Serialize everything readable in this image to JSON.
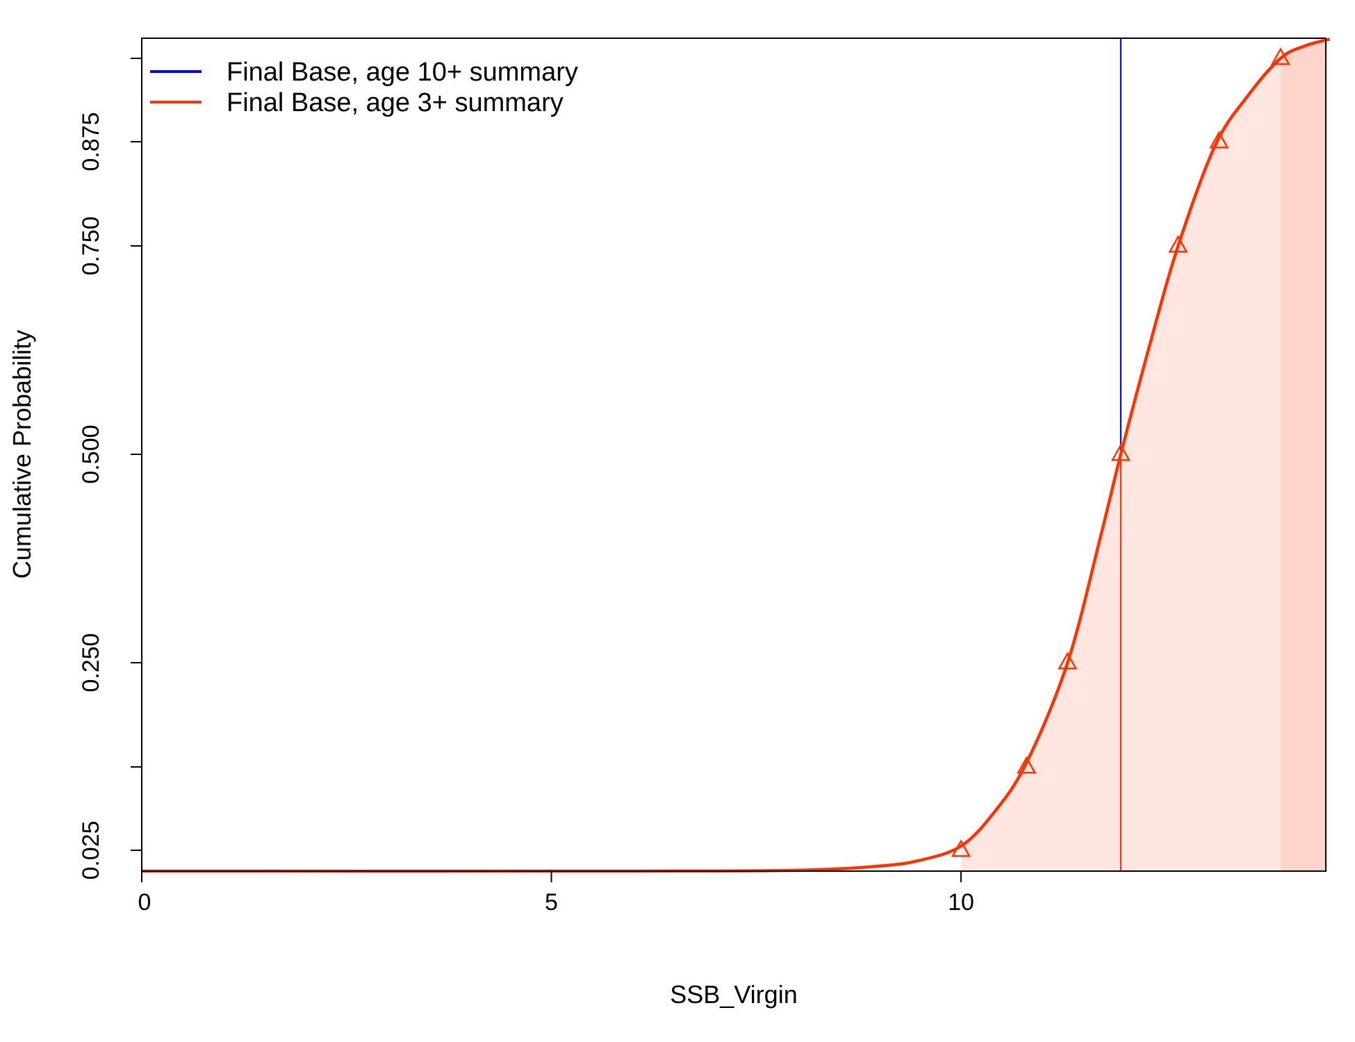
{
  "chart_data": {
    "type": "line",
    "title": "",
    "xlabel": "SSB_Virgin",
    "ylabel": "Cumulative Probability",
    "xlim": [
      0,
      14.5
    ],
    "ylim": [
      0,
      1.0
    ],
    "x_ticks": [
      "0",
      "5",
      "10"
    ],
    "y_ticks": [
      "0.025",
      "0.250",
      "0.500",
      "0.750",
      "0.875"
    ],
    "grid": false,
    "legend_position": "top-left",
    "legend": [
      {
        "label": "Final Base, age 10+ summary",
        "color": "#0000ff"
      },
      {
        "label": "Final Base, age 3+ summary",
        "color": "#ff3300"
      }
    ],
    "series": [
      {
        "name": "Final Base, age 3+ summary",
        "color": "#ff3300",
        "x": [
          0,
          6,
          8,
          9,
          9.5,
          10,
          10.4,
          10.8,
          11.3,
          11.7,
          11.95,
          12.3,
          12.65,
          13.1,
          13.5,
          13.9,
          14.2,
          14.5
        ],
        "y": [
          0,
          0,
          0.001,
          0.006,
          0.013,
          0.03,
          0.07,
          0.13,
          0.25,
          0.4,
          0.5,
          0.63,
          0.75,
          0.87,
          0.93,
          0.975,
          0.99,
          0.998
        ],
        "markers_x": [
          10.0,
          10.8,
          11.3,
          11.95,
          12.65,
          13.15,
          13.9
        ],
        "markers_y": [
          0.025,
          0.125,
          0.25,
          0.5,
          0.75,
          0.875,
          0.975
        ],
        "median": 11.95,
        "shade_from": 10.0,
        "shade_dark_from": 13.9
      }
    ],
    "reference_line": {
      "name": "Final Base, age 10+ summary",
      "color": "#0000ff",
      "x": 11.95,
      "y_from": 0.5,
      "y_to": 1.0
    }
  }
}
